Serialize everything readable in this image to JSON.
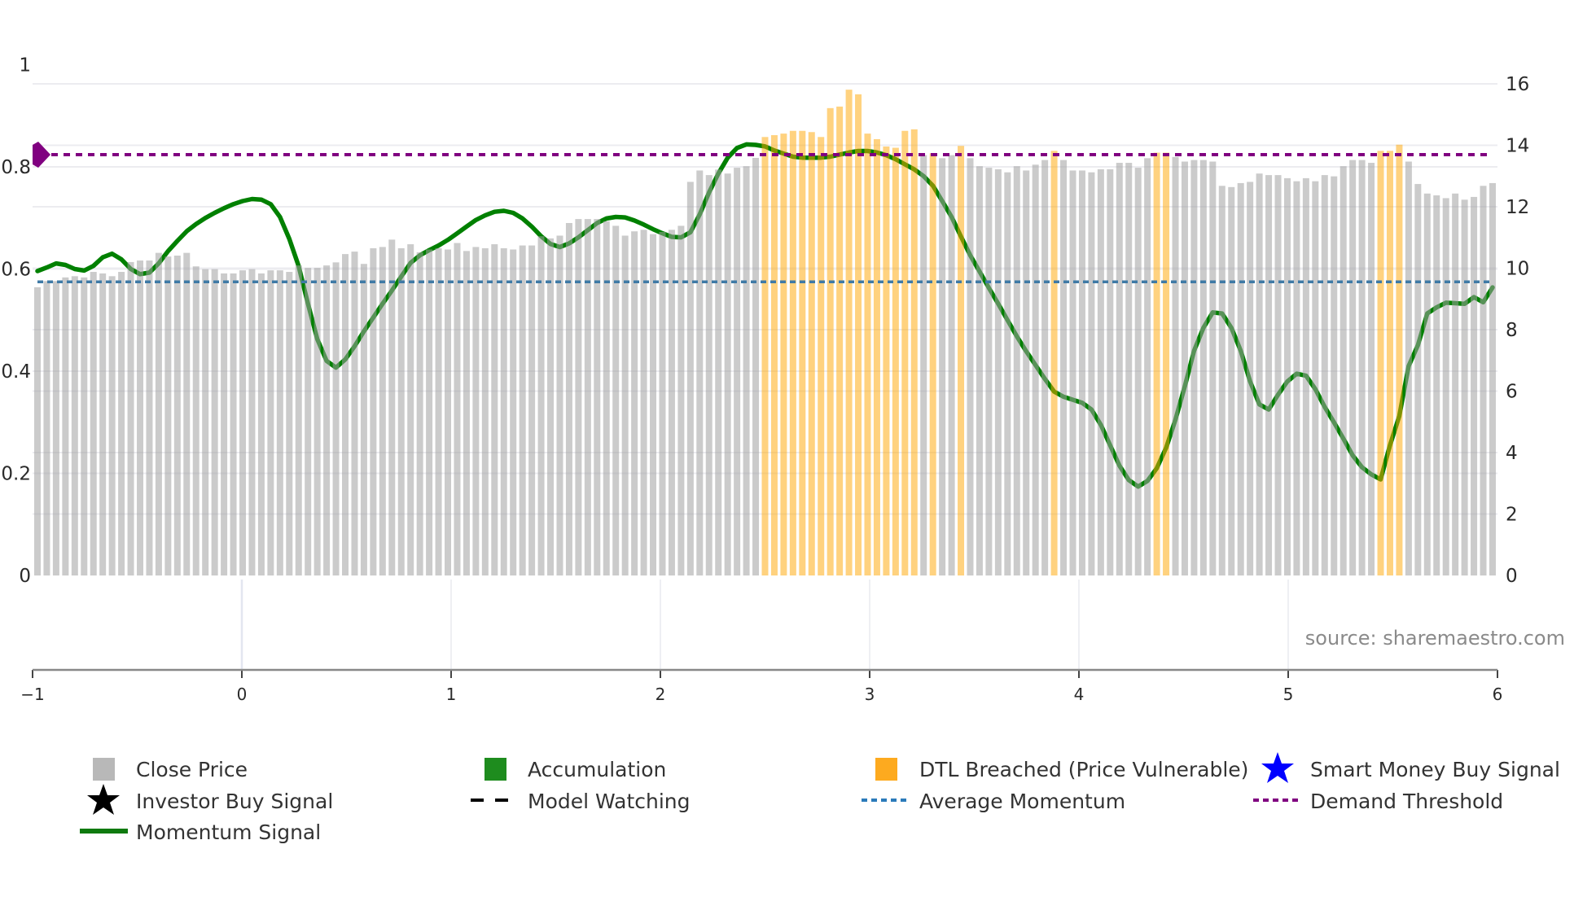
{
  "chart_data": {
    "type": "bar",
    "title": "",
    "colors": {
      "close_price": "#a0a0a0",
      "dtl_breached": "#ffa500",
      "momentum": "#008000",
      "average_momentum": "#3f7aa6",
      "demand_threshold": "#800080",
      "accumulation": "#1e8c1e",
      "smart_money": "#0000ff",
      "investor": "#000000"
    },
    "left_axis": {
      "range": [
        0,
        1
      ],
      "ticks": [
        "0",
        "0.2",
        "0.4",
        "0.6",
        "0.8",
        "1"
      ],
      "tick_values": [
        0,
        0.2,
        0.4,
        0.6,
        0.8,
        1
      ]
    },
    "right_axis": {
      "range": [
        0,
        16
      ],
      "ticks": [
        "0",
        "2",
        "4",
        "6",
        "8",
        "10",
        "12",
        "14",
        "16"
      ],
      "tick_values": [
        0,
        2,
        4,
        6,
        8,
        10,
        12,
        14,
        16
      ]
    },
    "x_axis": {
      "ticks": [
        "−1",
        "0",
        "1",
        "2",
        "3",
        "4",
        "5",
        "6"
      ],
      "tick_values": [
        -1,
        0,
        1,
        2,
        3,
        4,
        5,
        6
      ]
    },
    "close_price": [
      9.38,
      9.58,
      9.58,
      9.7,
      9.74,
      9.7,
      9.88,
      9.83,
      9.74,
      9.88,
      10.2,
      10.25,
      10.25,
      10.5,
      10.38,
      10.41,
      10.5,
      10.06,
      9.97,
      9.97,
      9.83,
      9.83,
      9.93,
      9.97,
      9.83,
      9.93,
      9.93,
      9.88,
      10.09,
      10.01,
      10.01,
      10.09,
      10.19,
      10.46,
      10.54,
      10.14,
      10.65,
      10.69,
      10.93,
      10.65,
      10.78,
      10.52,
      10.61,
      10.65,
      10.61,
      10.82,
      10.56,
      10.69,
      10.65,
      10.78,
      10.65,
      10.61,
      10.74,
      10.74,
      11.04,
      10.97,
      11.06,
      11.47,
      11.6,
      11.6,
      11.6,
      11.53,
      11.38,
      11.06,
      11.2,
      11.25,
      11.11,
      11.18,
      11.25,
      11.38,
      12.81,
      13.18,
      13.03,
      13.21,
      13.08,
      13.27,
      13.32,
      13.59,
      14.27,
      14.33,
      14.38,
      14.47,
      14.47,
      14.43,
      14.27,
      15.21,
      15.26,
      15.81,
      15.66,
      14.38,
      14.2,
      13.96,
      13.92,
      14.47,
      14.52,
      13.68,
      13.74,
      13.58,
      13.68,
      13.98,
      13.58,
      13.32,
      13.27,
      13.22,
      13.12,
      13.32,
      13.18,
      13.37,
      13.52,
      13.82,
      13.52,
      13.18,
      13.18,
      13.12,
      13.22,
      13.22,
      13.43,
      13.43,
      13.27,
      13.58,
      13.76,
      13.76,
      13.62,
      13.47,
      13.52,
      13.52,
      13.47,
      12.68,
      12.64,
      12.77,
      12.81,
      13.08,
      13.03,
      13.03,
      12.93,
      12.83,
      12.93,
      12.83,
      13.03,
      12.99,
      13.32,
      13.52,
      13.52,
      13.43,
      13.82,
      13.82,
      14.02,
      13.47,
      12.74,
      12.43,
      12.37,
      12.28,
      12.43,
      12.23,
      12.32,
      12.68,
      12.77
    ],
    "dtl_breached_indices": [
      78,
      79,
      80,
      81,
      82,
      83,
      84,
      85,
      86,
      87,
      88,
      89,
      90,
      91,
      92,
      93,
      94,
      96,
      99,
      109,
      120,
      121,
      144,
      145,
      146
    ],
    "momentum": [
      0.596,
      0.603,
      0.611,
      0.608,
      0.6,
      0.597,
      0.606,
      0.623,
      0.63,
      0.619,
      0.6,
      0.59,
      0.593,
      0.611,
      0.635,
      0.655,
      0.674,
      0.688,
      0.7,
      0.71,
      0.719,
      0.727,
      0.733,
      0.737,
      0.736,
      0.727,
      0.702,
      0.659,
      0.606,
      0.532,
      0.463,
      0.42,
      0.407,
      0.423,
      0.449,
      0.478,
      0.505,
      0.532,
      0.558,
      0.585,
      0.612,
      0.627,
      0.637,
      0.646,
      0.657,
      0.67,
      0.683,
      0.696,
      0.705,
      0.712,
      0.714,
      0.71,
      0.699,
      0.683,
      0.664,
      0.649,
      0.643,
      0.65,
      0.662,
      0.676,
      0.69,
      0.699,
      0.702,
      0.701,
      0.695,
      0.687,
      0.678,
      0.67,
      0.663,
      0.662,
      0.672,
      0.707,
      0.75,
      0.787,
      0.818,
      0.837,
      0.844,
      0.843,
      0.84,
      0.832,
      0.826,
      0.82,
      0.818,
      0.818,
      0.818,
      0.82,
      0.824,
      0.828,
      0.831,
      0.831,
      0.828,
      0.823,
      0.815,
      0.805,
      0.795,
      0.782,
      0.763,
      0.733,
      0.702,
      0.664,
      0.627,
      0.595,
      0.563,
      0.532,
      0.5,
      0.468,
      0.439,
      0.412,
      0.385,
      0.36,
      0.35,
      0.344,
      0.338,
      0.325,
      0.295,
      0.255,
      0.215,
      0.187,
      0.174,
      0.185,
      0.21,
      0.25,
      0.305,
      0.37,
      0.44,
      0.485,
      0.515,
      0.513,
      0.485,
      0.44,
      0.38,
      0.335,
      0.325,
      0.354,
      0.38,
      0.395,
      0.391,
      0.365,
      0.33,
      0.3,
      0.268,
      0.235,
      0.212,
      0.198,
      0.188,
      0.255,
      0.312,
      0.41,
      0.451,
      0.513,
      0.525,
      0.534,
      0.533,
      0.532,
      0.545,
      0.535,
      0.564
    ],
    "average_momentum": 0.575,
    "demand_threshold": 0.824,
    "legend_placement": "bottom",
    "legend": [
      {
        "label": "Close Price",
        "symbol": "square-gray"
      },
      {
        "label": "Accumulation",
        "symbol": "square-green"
      },
      {
        "label": "DTL Breached (Price Vulnerable)",
        "symbol": "square-orange"
      },
      {
        "label": "Smart Money Buy Signal",
        "symbol": "star-blue"
      },
      {
        "label": "Investor Buy Signal",
        "symbol": "star-black"
      },
      {
        "label": "Model Watching",
        "symbol": "dash-black"
      },
      {
        "label": "Average Momentum",
        "symbol": "dot-blue"
      },
      {
        "label": "Demand Threshold",
        "symbol": "dot-purple"
      },
      {
        "label": "Momentum Signal",
        "symbol": "line-green"
      }
    ],
    "annotation": "source: sharemaestro.com"
  }
}
